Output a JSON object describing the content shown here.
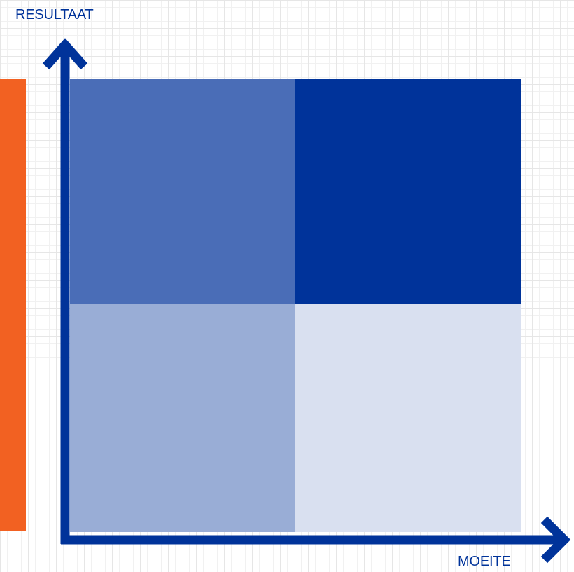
{
  "axes": {
    "y_label": "RESULTAAT",
    "x_label": "MOEITE"
  },
  "colors": {
    "axis": "#00339A",
    "accent_bar": "#F26122",
    "quadrant_top_left": "#4A6DB7",
    "quadrant_top_right": "#00339A",
    "quadrant_bottom_left": "#99ADD6",
    "quadrant_bottom_right": "#D9E0F0"
  }
}
